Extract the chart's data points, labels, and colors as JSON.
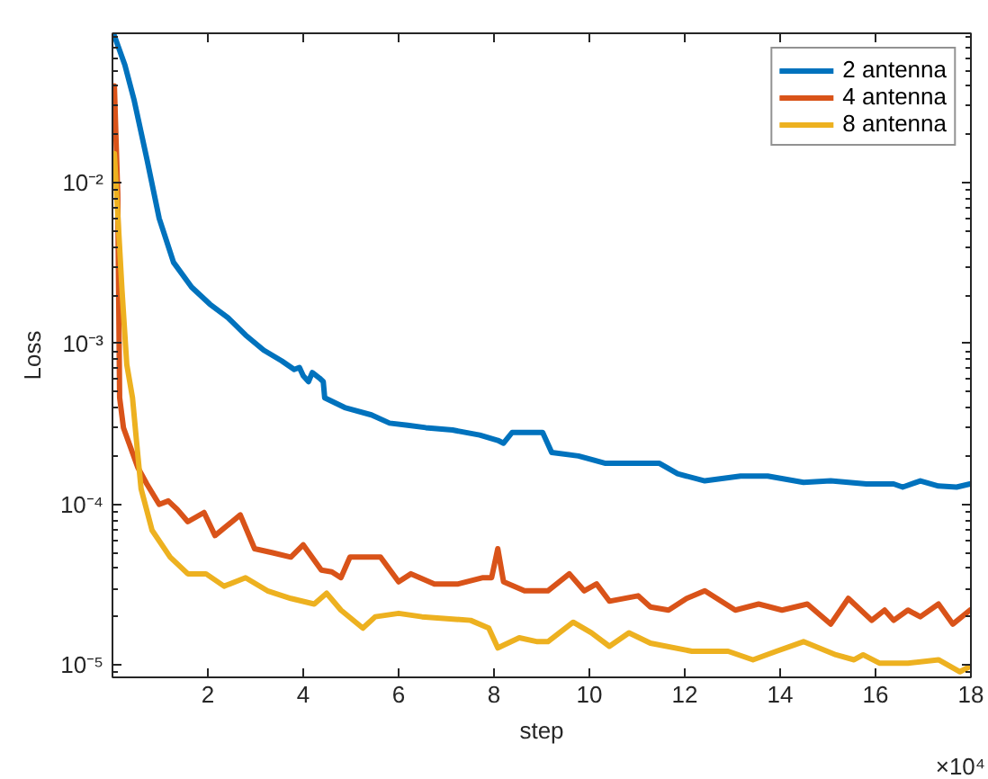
{
  "chart_data": {
    "type": "line",
    "xlabel": "step",
    "ylabel": "Loss",
    "log": "y",
    "grid": false,
    "legend": "top right",
    "line_style": "solid",
    "marker": "none",
    "xlim": [
      0,
      18
    ],
    "xticks": [
      2,
      4,
      6,
      8,
      10,
      12,
      14,
      16,
      18
    ],
    "ylim": [
      8.4e-06,
      0.085
    ],
    "yticks": [
      {
        "value": 1e-05,
        "label": "10⁻⁵"
      },
      {
        "value": 0.0001,
        "label": "10⁻⁴"
      },
      {
        "value": 0.001,
        "label": "10⁻³"
      },
      {
        "value": 0.01,
        "label": "10⁻²"
      }
    ],
    "annotations": [
      "×10⁴"
    ],
    "series": [
      {
        "name": "2 antenna",
        "color": "#0072bd",
        "x": [
          0.04,
          0.26,
          0.45,
          0.72,
          0.98,
          1.28,
          1.66,
          2.04,
          2.42,
          2.79,
          3.17,
          3.55,
          3.81,
          3.92,
          4.0,
          4.11,
          4.19,
          4.34,
          4.42,
          4.45,
          4.87,
          5.43,
          5.81,
          6.19,
          6.57,
          7.13,
          7.7,
          8.08,
          8.2,
          8.38,
          8.64,
          9.02,
          9.21,
          9.77,
          10.34,
          10.91,
          11.47,
          11.85,
          12.42,
          13.17,
          13.74,
          14.49,
          15.06,
          15.81,
          16.38,
          16.57,
          16.94,
          17.32,
          17.7,
          17.98
        ],
        "values": [
          0.082,
          0.054,
          0.033,
          0.0141,
          0.006,
          0.0032,
          0.00224,
          0.00176,
          0.00145,
          0.00113,
          0.00091,
          0.00078,
          0.00069,
          0.00071,
          0.00063,
          0.00058,
          0.00066,
          0.00061,
          0.00058,
          0.00046,
          0.0004,
          0.00036,
          0.00032,
          0.00031,
          0.0003,
          0.00029,
          0.00027,
          0.00025,
          0.00024,
          0.00028,
          0.00028,
          0.00028,
          0.00021,
          0.0002,
          0.00018,
          0.00018,
          0.00018,
          0.000155,
          0.00014,
          0.00015,
          0.00015,
          0.000137,
          0.00014,
          0.000134,
          0.000134,
          0.000128,
          0.00014,
          0.00013,
          0.000128,
          0.000134
        ]
      },
      {
        "name": "4 antenna",
        "color": "#d95319",
        "x": [
          0.04,
          0.11,
          0.15,
          0.23,
          0.53,
          0.72,
          0.98,
          1.17,
          1.36,
          1.58,
          1.92,
          2.15,
          2.68,
          2.98,
          3.36,
          3.74,
          4.0,
          4.38,
          4.6,
          4.79,
          4.98,
          5.62,
          6.0,
          6.26,
          6.75,
          7.25,
          7.77,
          7.95,
          8.08,
          8.2,
          8.64,
          9.13,
          9.58,
          9.89,
          10.15,
          10.42,
          11.02,
          11.28,
          11.66,
          12.04,
          12.42,
          13.06,
          13.55,
          14.04,
          14.57,
          15.06,
          15.43,
          15.92,
          16.19,
          16.38,
          16.68,
          16.94,
          17.32,
          17.62,
          17.98
        ],
        "values": [
          0.04,
          0.0086,
          0.00046,
          0.0003,
          0.00017,
          0.000134,
          0.0001,
          0.000105,
          9.3e-05,
          7.8e-05,
          8.9e-05,
          6.4e-05,
          8.6e-05,
          5.3e-05,
          5e-05,
          4.7e-05,
          5.6e-05,
          3.9e-05,
          3.8e-05,
          3.5e-05,
          4.7e-05,
          4.7e-05,
          3.3e-05,
          3.7e-05,
          3.2e-05,
          3.2e-05,
          3.5e-05,
          3.5e-05,
          5.3e-05,
          3.3e-05,
          2.9e-05,
          2.9e-05,
          3.7e-05,
          2.9e-05,
          3.2e-05,
          2.5e-05,
          2.7e-05,
          2.3e-05,
          2.2e-05,
          2.6e-05,
          2.9e-05,
          2.2e-05,
          2.4e-05,
          2.2e-05,
          2.4e-05,
          1.8e-05,
          2.6e-05,
          1.9e-05,
          2.2e-05,
          1.9e-05,
          2.2e-05,
          2e-05,
          2.4e-05,
          1.8e-05,
          2.2e-05
        ]
      },
      {
        "name": "8 antenna",
        "color": "#edb120",
        "x": [
          0.04,
          0.2,
          0.3,
          0.42,
          0.52,
          0.6,
          0.83,
          1.21,
          1.58,
          1.96,
          2.34,
          2.79,
          3.25,
          3.74,
          4.23,
          4.49,
          4.79,
          5.25,
          5.51,
          6.0,
          6.49,
          7.51,
          7.89,
          8.08,
          8.53,
          8.91,
          9.13,
          9.66,
          10.04,
          10.42,
          10.83,
          11.28,
          12.15,
          12.91,
          13.43,
          13.92,
          14.49,
          15.17,
          15.55,
          15.74,
          16.08,
          16.68,
          17.32,
          17.77,
          17.98
        ],
        "values": [
          0.0152,
          0.00214,
          0.00074,
          0.00046,
          0.00022,
          0.000125,
          6.9e-05,
          4.7e-05,
          3.7e-05,
          3.7e-05,
          3.1e-05,
          3.5e-05,
          2.9e-05,
          2.6e-05,
          2.4e-05,
          2.8e-05,
          2.2e-05,
          1.7e-05,
          2e-05,
          2.1e-05,
          2e-05,
          1.9e-05,
          1.7e-05,
          1.28e-05,
          1.48e-05,
          1.4e-05,
          1.4e-05,
          1.85e-05,
          1.59e-05,
          1.31e-05,
          1.59e-05,
          1.37e-05,
          1.22e-05,
          1.22e-05,
          1.08e-05,
          1.22e-05,
          1.4e-05,
          1.16e-05,
          1.08e-05,
          1.16e-05,
          1.03e-05,
          1.03e-05,
          1.08e-05,
          9.1e-06,
          9.8e-06
        ]
      }
    ]
  }
}
